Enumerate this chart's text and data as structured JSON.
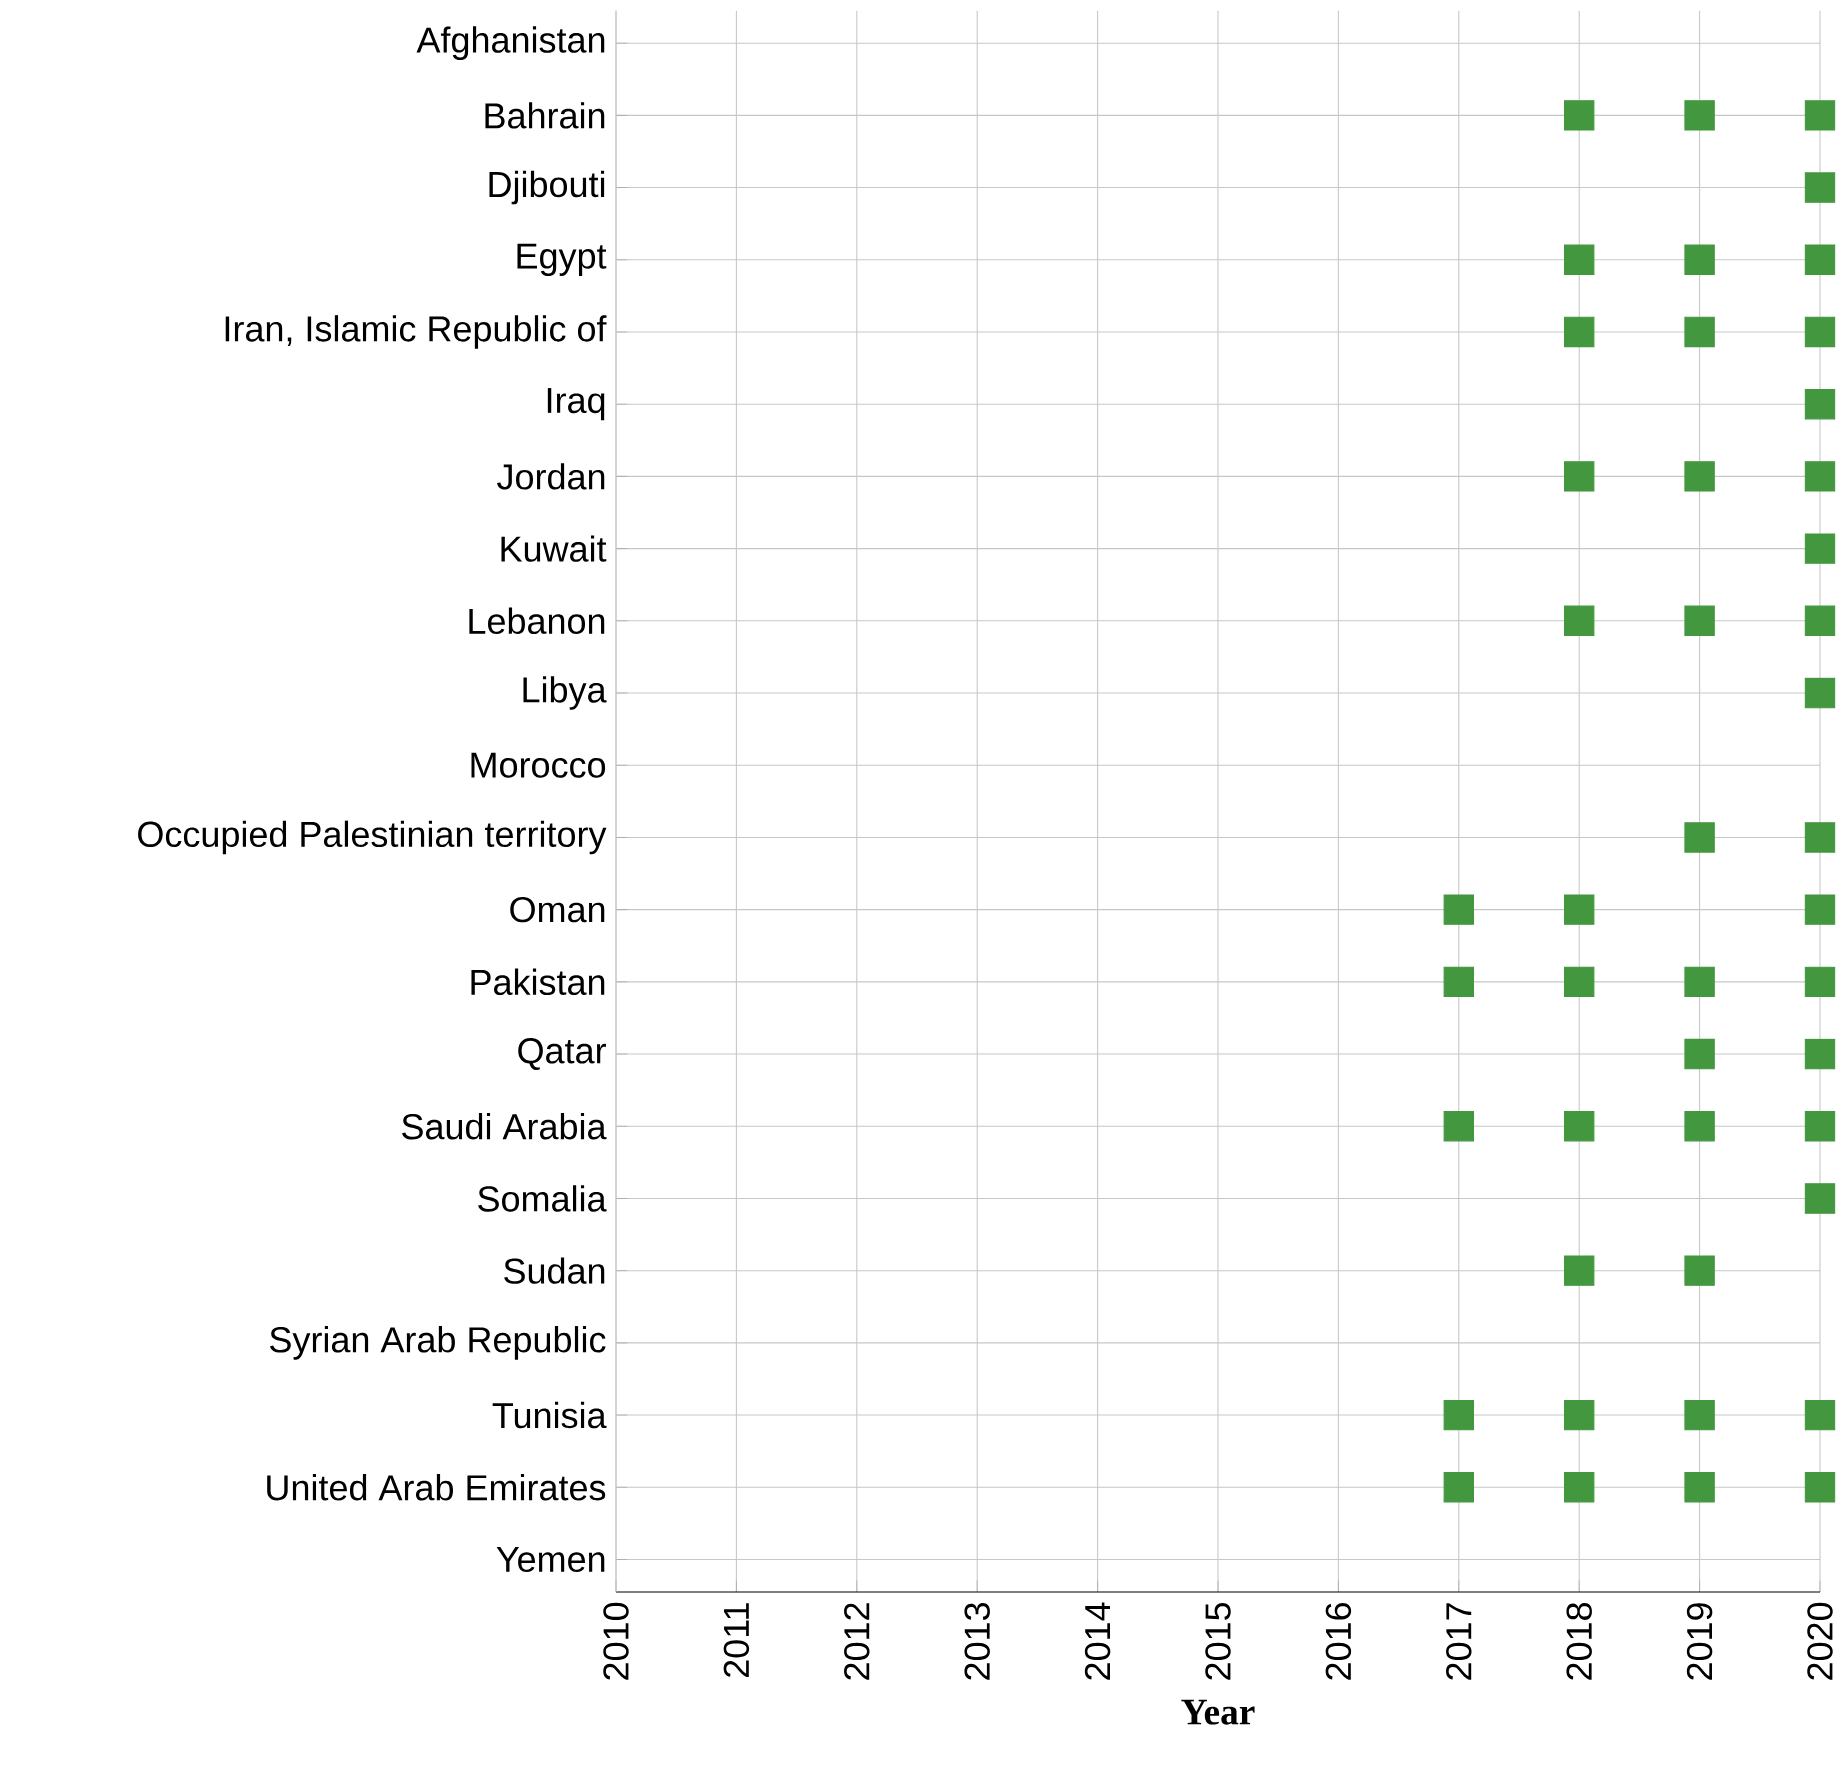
{
  "chart_data": {
    "type": "scatter",
    "orientation": "horizontal",
    "xlabel": "Year",
    "categories": [
      "Afghanistan",
      "Bahrain",
      "Djibouti",
      "Egypt",
      "Iran, Islamic Republic of",
      "Iraq",
      "Jordan",
      "Kuwait",
      "Lebanon",
      "Libya",
      "Morocco",
      "Occupied Palestinian territory",
      "Oman",
      "Pakistan",
      "Qatar",
      "Saudi Arabia",
      "Somalia",
      "Sudan",
      "Syrian Arab Republic",
      "Tunisia",
      "United Arab Emirates",
      "Yemen"
    ],
    "series": [
      {
        "color": "#43973f",
        "values": [
          null,
          null,
          null,
          null,
          null,
          null,
          null,
          null,
          null,
          null,
          null,
          null,
          2017,
          2017,
          null,
          2017,
          null,
          null,
          null,
          2017,
          2017,
          null
        ]
      },
      {
        "color": "#43973f",
        "values": [
          null,
          2018,
          null,
          2018,
          2018,
          null,
          2018,
          null,
          2018,
          null,
          null,
          null,
          2018,
          2018,
          null,
          2018,
          null,
          2018,
          null,
          2018,
          2018,
          null
        ]
      },
      {
        "color": "#43973f",
        "values": [
          null,
          2019,
          null,
          2019,
          2019,
          null,
          2019,
          null,
          2019,
          null,
          null,
          2019,
          null,
          2019,
          2019,
          2019,
          null,
          2019,
          null,
          2019,
          2019,
          null
        ]
      },
      {
        "color": "#43973f",
        "values": [
          null,
          2020,
          2020,
          2020,
          2020,
          2020,
          2020,
          2020,
          2020,
          2020,
          null,
          2020,
          2020,
          2020,
          2020,
          2020,
          2020,
          null,
          null,
          2020,
          2020,
          null
        ]
      }
    ],
    "xlim": [
      2010,
      2020
    ],
    "xticks": [
      2010,
      2011,
      2012,
      2013,
      2014,
      2015,
      2016,
      2017,
      2018,
      2019,
      2020
    ],
    "grid": true,
    "marker": "square"
  }
}
